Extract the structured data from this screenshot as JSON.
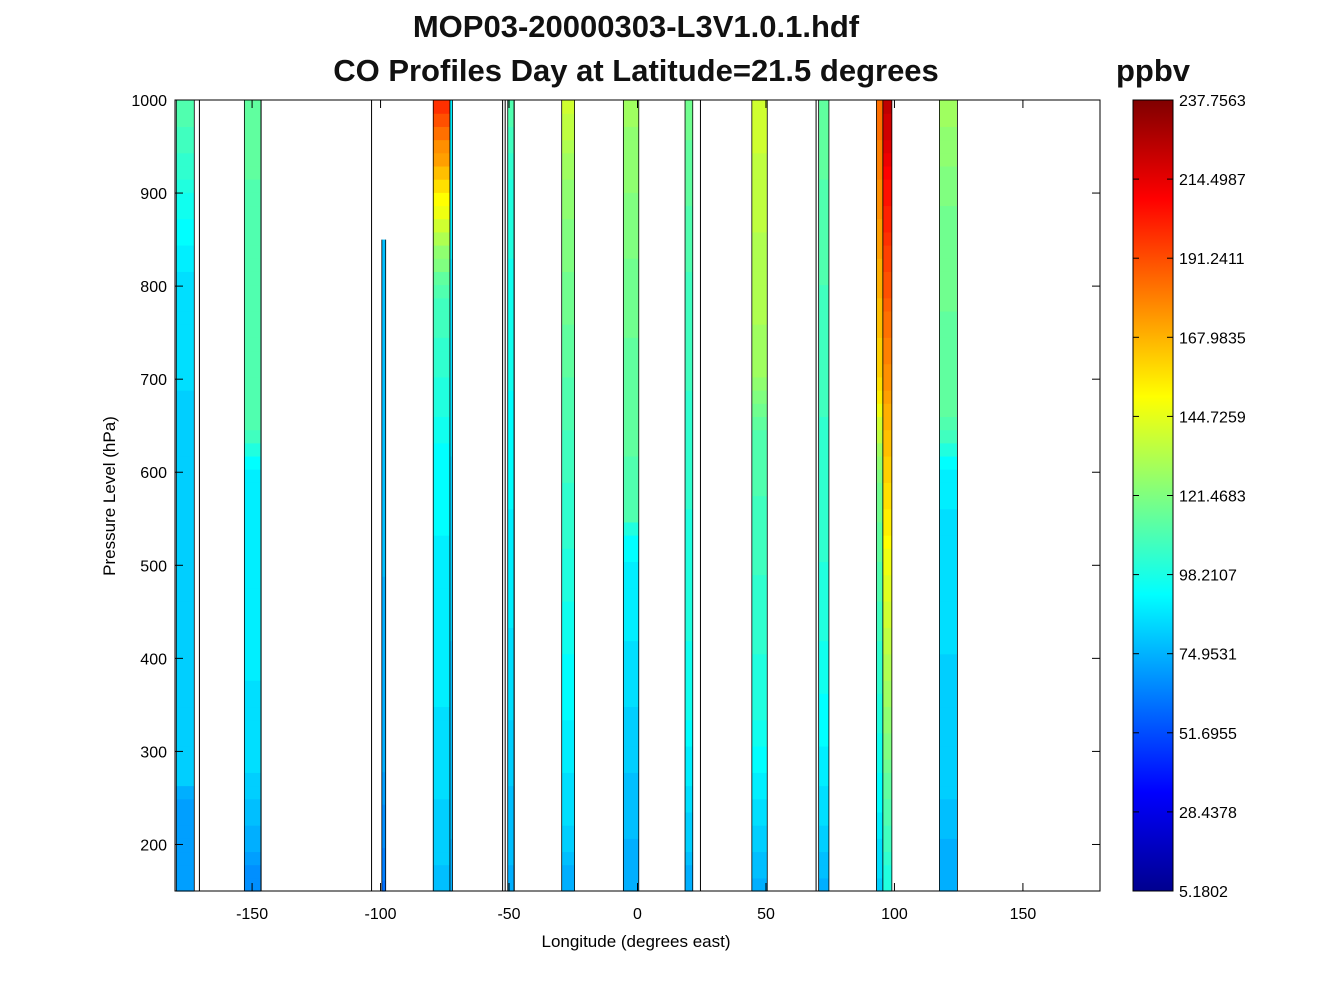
{
  "chart_data": {
    "type": "heatmap",
    "title_line1": "MOP03-20000303-L3V1.0.1.hdf",
    "title_line2": "CO Profiles Day at Latitude=21.5 degrees",
    "xlabel": "Longitude (degrees east)",
    "ylabel": "Pressure Level (hPa)",
    "xlim": [
      -180,
      180
    ],
    "ylim": [
      150,
      1000
    ],
    "y_reversed": false,
    "x_ticks": [
      -150,
      -100,
      -50,
      0,
      50,
      100,
      150
    ],
    "y_ticks": [
      200,
      300,
      400,
      500,
      600,
      700,
      800,
      900,
      1000
    ],
    "colorbar": {
      "title": "ppbv",
      "min": 5.1802,
      "max": 237.7563,
      "tick_labels": [
        "5.1802",
        "28.4378",
        "51.6955",
        "74.9531",
        "98.2107",
        "121.4683",
        "144.7259",
        "167.9835",
        "191.2411",
        "214.4987",
        "237.7563"
      ],
      "colormap": "jet"
    },
    "columns": [
      {
        "lon_min": -179.5,
        "lon_max": -172.5,
        "profile": [
          [
            150,
            72
          ],
          [
            250,
            72
          ],
          [
            270,
            82
          ],
          [
            600,
            82
          ],
          [
            800,
            85
          ],
          [
            1000,
            112
          ]
        ]
      },
      {
        "lon_min": -153.0,
        "lon_max": -146.5,
        "profile": [
          [
            150,
            65
          ],
          [
            230,
            78
          ],
          [
            300,
            86
          ],
          [
            600,
            90
          ],
          [
            650,
            110
          ],
          [
            900,
            112
          ],
          [
            1000,
            115
          ]
        ]
      },
      {
        "lon_min": -99.5,
        "lon_max": -98.0,
        "profile": [
          [
            150,
            60
          ],
          [
            300,
            75
          ],
          [
            850,
            78
          ]
        ]
      },
      {
        "lon_min": -79.5,
        "lon_max": -73.0,
        "profile": [
          [
            150,
            78
          ],
          [
            300,
            86
          ],
          [
            600,
            92
          ],
          [
            800,
            110
          ],
          [
            1000,
            200
          ]
        ]
      },
      {
        "lon_min": -73.0,
        "lon_max": -72.0,
        "profile": [
          [
            150,
            75
          ],
          [
            1000,
            90
          ]
        ]
      },
      {
        "lon_min": -50.5,
        "lon_max": -48.0,
        "profile": [
          [
            150,
            75
          ],
          [
            400,
            86
          ],
          [
            900,
            100
          ],
          [
            1000,
            112
          ]
        ]
      },
      {
        "lon_min": -29.5,
        "lon_max": -24.5,
        "profile": [
          [
            150,
            72
          ],
          [
            220,
            84
          ],
          [
            500,
            100
          ],
          [
            700,
            112
          ],
          [
            900,
            125
          ],
          [
            1000,
            140
          ]
        ]
      },
      {
        "lon_min": -5.5,
        "lon_max": 0.5,
        "profile": [
          [
            150,
            72
          ],
          [
            240,
            78
          ],
          [
            530,
            92
          ],
          [
            550,
            110
          ],
          [
            800,
            118
          ],
          [
            1000,
            128
          ]
        ]
      },
      {
        "lon_min": 18.5,
        "lon_max": 21.5,
        "profile": [
          [
            150,
            72
          ],
          [
            200,
            80
          ],
          [
            350,
            96
          ],
          [
            800,
            108
          ],
          [
            1000,
            118
          ]
        ]
      },
      {
        "lon_min": 44.5,
        "lon_max": 50.5,
        "profile": [
          [
            150,
            74
          ],
          [
            200,
            80
          ],
          [
            330,
            98
          ],
          [
            650,
            112
          ],
          [
            700,
            128
          ],
          [
            1000,
            140
          ]
        ]
      },
      {
        "lon_min": 70.5,
        "lon_max": 74.5,
        "profile": [
          [
            150,
            75
          ],
          [
            270,
            88
          ],
          [
            450,
            100
          ],
          [
            850,
            110
          ],
          [
            1000,
            115
          ]
        ]
      },
      {
        "lon_min": 93.0,
        "lon_max": 95.5,
        "profile": [
          [
            150,
            82
          ],
          [
            300,
            96
          ],
          [
            600,
            120
          ],
          [
            700,
            160
          ],
          [
            1000,
            185
          ]
        ]
      },
      {
        "lon_min": 95.5,
        "lon_max": 99.0,
        "profile": [
          [
            150,
            98
          ],
          [
            300,
            120
          ],
          [
            450,
            140
          ],
          [
            700,
            175
          ],
          [
            900,
            205
          ],
          [
            1000,
            225
          ]
        ]
      },
      {
        "lon_min": 117.5,
        "lon_max": 124.5,
        "profile": [
          [
            150,
            72
          ],
          [
            260,
            80
          ],
          [
            600,
            88
          ],
          [
            650,
            112
          ],
          [
            900,
            120
          ],
          [
            1000,
            130
          ]
        ]
      }
    ],
    "contour_lines_lon": [
      -170.5,
      -146.5,
      -103.5,
      -52.5,
      -51.5,
      -48.0,
      24.5,
      69.5
    ],
    "grid": false
  }
}
